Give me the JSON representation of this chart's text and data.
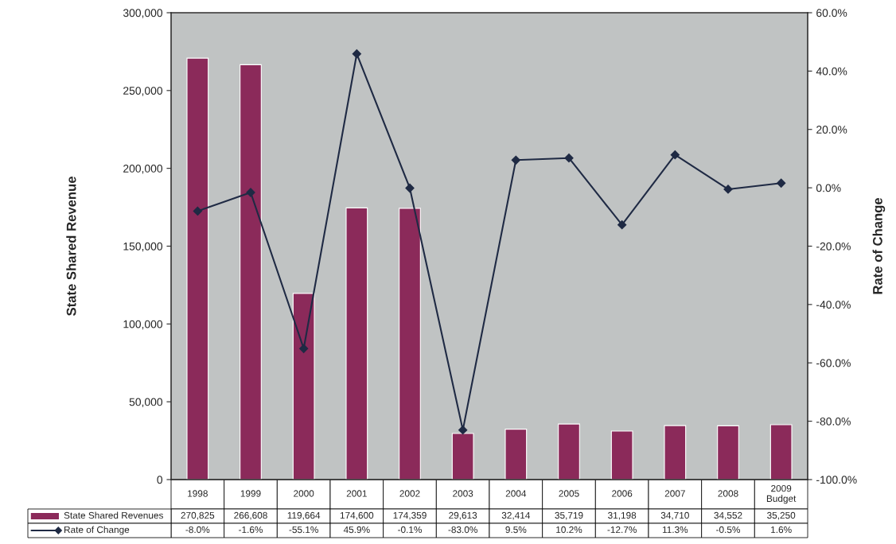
{
  "chart_data": {
    "type": "bar",
    "ylabel": "State Shared Revenue",
    "y2label": "Rate of Change",
    "categories": [
      "1998",
      "1999",
      "2000",
      "2001",
      "2002",
      "2003",
      "2004",
      "2005",
      "2006",
      "2007",
      "2008",
      "2009\nBudget"
    ],
    "series": [
      {
        "name": "State Shared Revenues",
        "color": "#8b2a5a",
        "values": [
          270825,
          266608,
          119664,
          174600,
          174359,
          29613,
          32414,
          35719,
          31198,
          34710,
          34552,
          35250
        ],
        "value_labels": [
          "270,825",
          "266,608",
          "119,664",
          "174,600",
          "174,359",
          "29,613",
          "32,414",
          "35,719",
          "31,198",
          "34,710",
          "34,552",
          "35,250"
        ]
      },
      {
        "name": "Rate of Change",
        "type": "line",
        "axis": "y2",
        "color": "#1f2a44",
        "marker": "diamond",
        "values": [
          -8.0,
          -1.6,
          -55.1,
          45.9,
          -0.1,
          -83.0,
          9.5,
          10.2,
          -12.7,
          11.3,
          -0.5,
          1.6
        ],
        "value_labels": [
          "-8.0%",
          "-1.6%",
          "-55.1%",
          "45.9%",
          "-0.1%",
          "-83.0%",
          "9.5%",
          "10.2%",
          "-12.7%",
          "11.3%",
          "-0.5%",
          "1.6%"
        ]
      }
    ],
    "ylim": [
      0,
      300000
    ],
    "yticks": [
      0,
      {
        "value": 50000,
        "label": "50,000"
      },
      {
        "value": 100000,
        "label": "100,000"
      },
      {
        "value": 150000,
        "label": "150,000"
      },
      {
        "value": 200000,
        "label": "200,000"
      },
      {
        "value": 250000,
        "label": "250,000"
      },
      {
        "value": 300000,
        "label": "300,000"
      }
    ],
    "y2lim": [
      -100,
      60
    ],
    "y2ticks": [
      {
        "value": -100,
        "label": "-100.0%"
      },
      {
        "value": -80,
        "label": "-80.0%"
      },
      {
        "value": -60,
        "label": "-60.0%"
      },
      {
        "value": -40,
        "label": "-40.0%"
      },
      {
        "value": -20,
        "label": "-20.0%"
      },
      {
        "value": 0,
        "label": "0.0%"
      },
      {
        "value": 20,
        "label": "20.0%"
      },
      {
        "value": 40,
        "label": "40.0%"
      },
      {
        "value": 60,
        "label": "60.0%"
      }
    ],
    "grid": false,
    "legend": "bottom left"
  }
}
